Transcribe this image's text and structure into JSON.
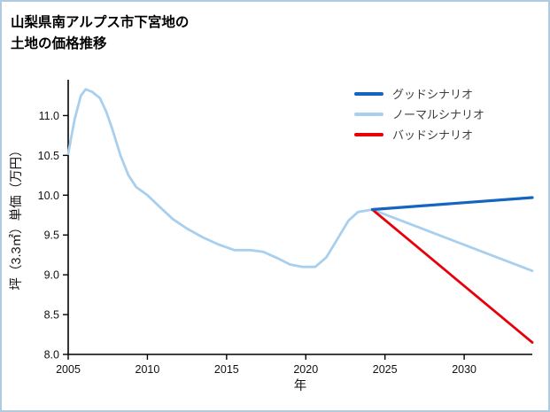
{
  "title": {
    "line1": "山梨県南アルプス市下宮地の",
    "line2": "土地の価格推移"
  },
  "colors": {
    "page_border": "#aecbe0",
    "axis": "#000000",
    "tick_text": "#111111",
    "good": "#1565c0",
    "normal": "#a8d0ee",
    "bad": "#e8000b"
  },
  "chart_data": {
    "type": "line",
    "title": "山梨県南アルプス市下宮地の土地の価格推移",
    "xlabel": "年",
    "ylabel": "坪（3.3㎡）単価（万円）",
    "xlim": [
      2005,
      2034.3
    ],
    "ylim": [
      8.0,
      11.45
    ],
    "xticks": [
      2005,
      2010,
      2015,
      2020,
      2025,
      2030
    ],
    "xtick_labels": [
      "2005",
      "2010",
      "2015",
      "2020",
      "2025",
      "2030"
    ],
    "yticks": [
      8.0,
      8.5,
      9.0,
      9.5,
      10.0,
      10.5,
      11.0
    ],
    "ytick_labels": [
      "8.0",
      "8.5",
      "9.0",
      "9.5",
      "10.0",
      "10.5",
      "11.0"
    ],
    "grid": false,
    "legend_position": "upper right",
    "series": [
      {
        "key": "good-scenario",
        "name": "グッドシナリオ",
        "color": "#1565c0",
        "width": 3.2,
        "z": 3,
        "x": [
          2024.2,
          2034.3
        ],
        "y": [
          9.82,
          9.97
        ]
      },
      {
        "key": "normal-scenario",
        "name": "ノーマルシナリオ",
        "color": "#a8d0ee",
        "width": 2.8,
        "z": 1,
        "x": [
          2005,
          2005.4,
          2005.8,
          2006.1,
          2006.5,
          2007,
          2007.4,
          2007.8,
          2008.3,
          2008.8,
          2009.3,
          2010,
          2010.8,
          2011.6,
          2012.5,
          2013.5,
          2014.5,
          2015.5,
          2016.5,
          2017.3,
          2018.2,
          2019,
          2019.8,
          2020.6,
          2021.3,
          2022,
          2022.7,
          2023.3,
          2024.2,
          2034.3
        ],
        "y": [
          10.52,
          10.95,
          11.25,
          11.33,
          11.3,
          11.22,
          11.05,
          10.82,
          10.5,
          10.25,
          10.1,
          10.0,
          9.85,
          9.7,
          9.58,
          9.47,
          9.38,
          9.31,
          9.31,
          9.29,
          9.21,
          9.13,
          9.1,
          9.1,
          9.22,
          9.45,
          9.68,
          9.79,
          9.82,
          9.05
        ]
      },
      {
        "key": "bad-scenario",
        "name": "バッドシナリオ",
        "color": "#e8000b",
        "width": 2.8,
        "z": 2,
        "x": [
          2024.2,
          2034.3
        ],
        "y": [
          9.82,
          8.15
        ]
      }
    ]
  }
}
